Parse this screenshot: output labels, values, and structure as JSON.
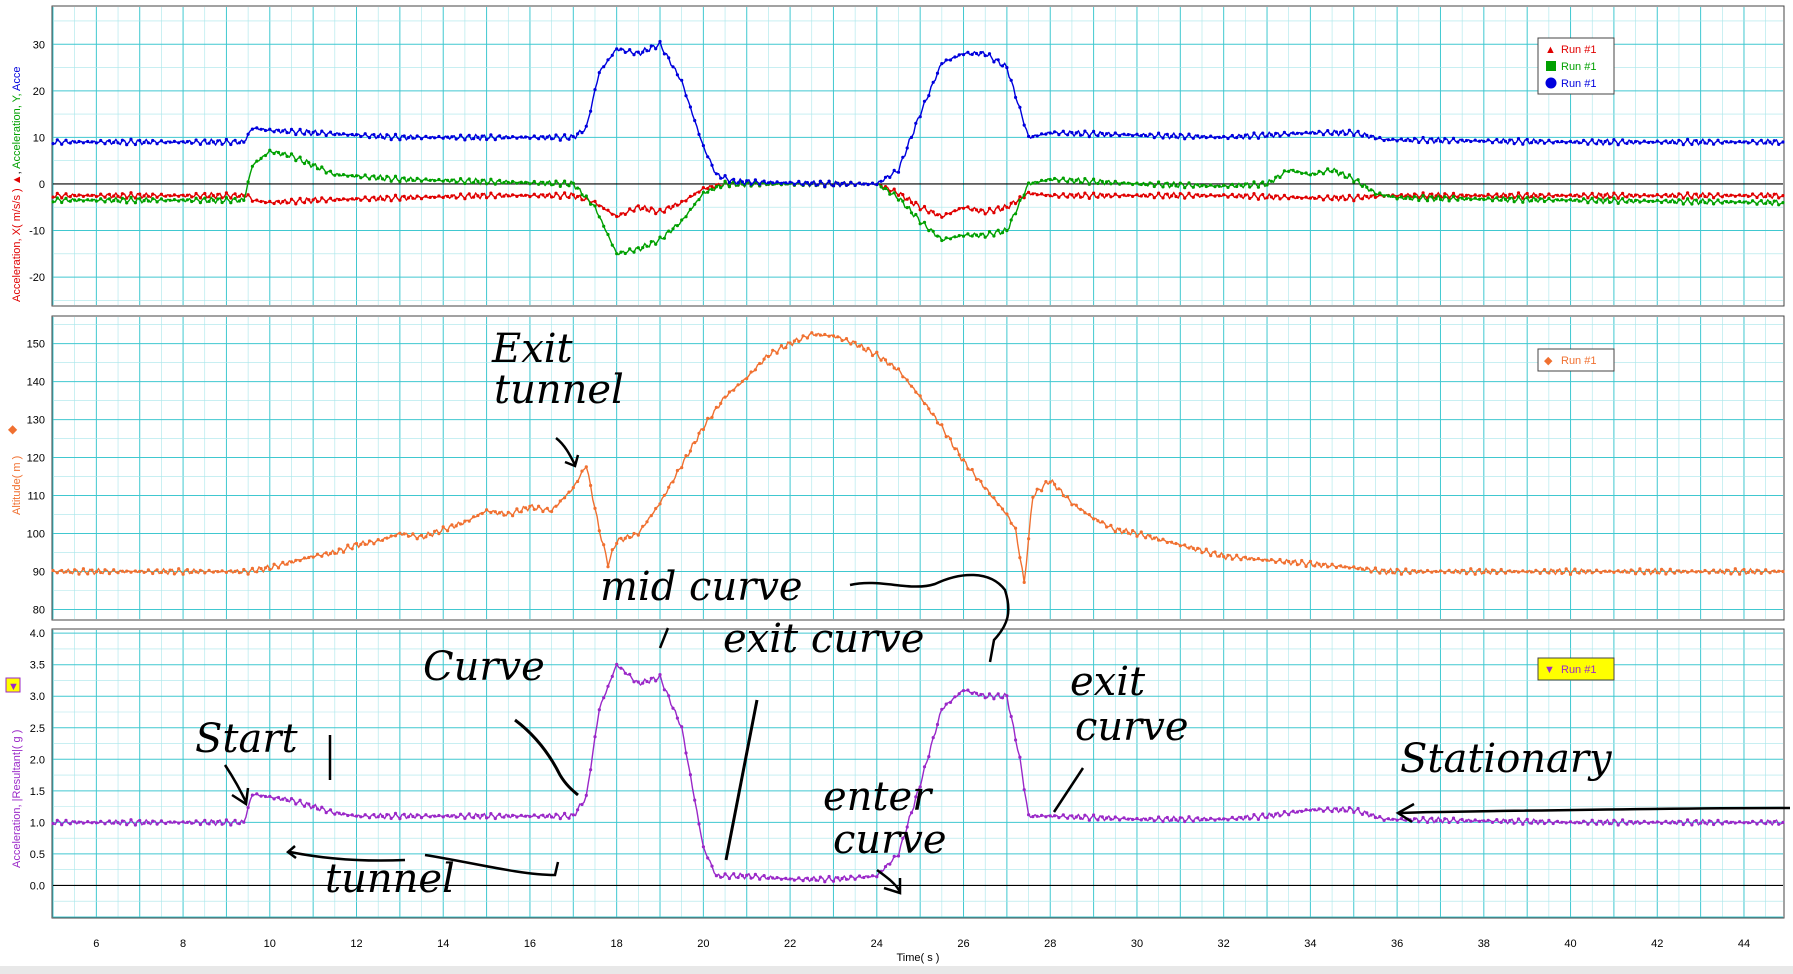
{
  "chart_data": [
    {
      "type": "line",
      "title": "",
      "xlabel": "",
      "ylabel": "Acceleration, X( m/s/s )  Acceleration, Y, Acce",
      "xlim": [
        5,
        44.9
      ],
      "ylim": [
        -26,
        38
      ],
      "yticks": [
        30,
        20,
        10,
        0,
        -10,
        -20
      ],
      "grid": true,
      "legend": {
        "position": "top-right",
        "entries": [
          "Run #1",
          "Run #1",
          "Run #1"
        ]
      },
      "series": [
        {
          "name": "Run #1",
          "color": "#e00000",
          "marker": "triangle",
          "points": [
            [
              5,
              -2.5
            ],
            [
              9.5,
              -2.5
            ],
            [
              9.6,
              -3.5
            ],
            [
              10,
              -4
            ],
            [
              11,
              -3.5
            ],
            [
              13,
              -3
            ],
            [
              15,
              -2.5
            ],
            [
              17,
              -2.5
            ],
            [
              17.5,
              -4
            ],
            [
              18,
              -7
            ],
            [
              18.5,
              -5
            ],
            [
              19,
              -6
            ],
            [
              19.5,
              -4
            ],
            [
              20,
              -1
            ],
            [
              20.5,
              0
            ],
            [
              23,
              0
            ],
            [
              24,
              0
            ],
            [
              24.5,
              -2
            ],
            [
              25,
              -5
            ],
            [
              25.5,
              -7
            ],
            [
              26,
              -5
            ],
            [
              26.5,
              -6
            ],
            [
              27,
              -5
            ],
            [
              27.5,
              -2
            ],
            [
              28,
              -2.5
            ],
            [
              30,
              -2.5
            ],
            [
              32,
              -2.5
            ],
            [
              34,
              -3
            ],
            [
              35,
              -3
            ],
            [
              35.7,
              -2.5
            ],
            [
              40,
              -2.5
            ],
            [
              44.9,
              -2.5
            ]
          ]
        },
        {
          "name": "Run #1",
          "color": "#00a000",
          "marker": "square",
          "points": [
            [
              5,
              -3.5
            ],
            [
              9.4,
              -3.5
            ],
            [
              9.6,
              4
            ],
            [
              10,
              7
            ],
            [
              10.5,
              6
            ],
            [
              11,
              4
            ],
            [
              11.5,
              2
            ],
            [
              13,
              1
            ],
            [
              15,
              0.5
            ],
            [
              17,
              0
            ],
            [
              17.5,
              -5
            ],
            [
              18,
              -15
            ],
            [
              18.5,
              -14
            ],
            [
              19,
              -12
            ],
            [
              19.5,
              -8
            ],
            [
              20,
              -2
            ],
            [
              20.5,
              0
            ],
            [
              24,
              0
            ],
            [
              24.5,
              -3
            ],
            [
              25,
              -8
            ],
            [
              25.5,
              -12
            ],
            [
              26,
              -11
            ],
            [
              26.5,
              -11
            ],
            [
              27,
              -10
            ],
            [
              27.5,
              0
            ],
            [
              28,
              1
            ],
            [
              30,
              0
            ],
            [
              32,
              -0.5
            ],
            [
              33,
              0
            ],
            [
              33.5,
              3
            ],
            [
              34,
              2
            ],
            [
              34.5,
              3
            ],
            [
              35,
              1
            ],
            [
              35.5,
              -2
            ],
            [
              36,
              -3
            ],
            [
              40,
              -3.5
            ],
            [
              44.9,
              -4
            ]
          ]
        },
        {
          "name": "Run #1",
          "color": "#0000dd",
          "marker": "circle",
          "points": [
            [
              5,
              9
            ],
            [
              9.4,
              9
            ],
            [
              9.6,
              12
            ],
            [
              10,
              11.5
            ],
            [
              11,
              11
            ],
            [
              13,
              10
            ],
            [
              15,
              10
            ],
            [
              17,
              10
            ],
            [
              17.3,
              12
            ],
            [
              17.6,
              24
            ],
            [
              18,
              29
            ],
            [
              18.5,
              28
            ],
            [
              19,
              30
            ],
            [
              19.5,
              22
            ],
            [
              20,
              8
            ],
            [
              20.3,
              2
            ],
            [
              20.7,
              0.5
            ],
            [
              23,
              0
            ],
            [
              24,
              0
            ],
            [
              24.5,
              3
            ],
            [
              25,
              15
            ],
            [
              25.5,
              26
            ],
            [
              26,
              28
            ],
            [
              26.5,
              28
            ],
            [
              27,
              25
            ],
            [
              27.5,
              10
            ],
            [
              28,
              11
            ],
            [
              30,
              10.5
            ],
            [
              32,
              10
            ],
            [
              34,
              11
            ],
            [
              35,
              11
            ],
            [
              35.7,
              9.5
            ],
            [
              40,
              9
            ],
            [
              44.9,
              9
            ]
          ]
        }
      ]
    },
    {
      "type": "line",
      "title": "",
      "xlabel": "",
      "ylabel": "Altitude( m )",
      "xlim": [
        5,
        44.9
      ],
      "ylim": [
        77.5,
        157
      ],
      "yticks": [
        150,
        140,
        130,
        120,
        110,
        100,
        90,
        80
      ],
      "grid": true,
      "legend": {
        "position": "top-right",
        "entries": [
          "Run #1"
        ]
      },
      "series": [
        {
          "name": "Run #1",
          "color": "#f07030",
          "marker": "diamond",
          "points": [
            [
              5,
              90
            ],
            [
              9.5,
              90
            ],
            [
              10,
              91
            ],
            [
              11,
              94
            ],
            [
              11.5,
              95
            ],
            [
              12,
              97
            ],
            [
              12.5,
              98
            ],
            [
              13,
              100
            ],
            [
              13.5,
              99
            ],
            [
              14,
              101
            ],
            [
              14.5,
              103
            ],
            [
              15,
              106
            ],
            [
              15.5,
              105
            ],
            [
              16,
              107
            ],
            [
              16.5,
              106
            ],
            [
              17,
              112
            ],
            [
              17.3,
              118
            ],
            [
              17.6,
              101
            ],
            [
              17.8,
              92
            ],
            [
              18,
              98
            ],
            [
              18.5,
              100
            ],
            [
              19,
              108
            ],
            [
              19.5,
              118
            ],
            [
              20,
              128
            ],
            [
              20.5,
              136
            ],
            [
              21,
              141
            ],
            [
              21.5,
              147
            ],
            [
              22,
              150
            ],
            [
              22.5,
              152.5
            ],
            [
              23,
              152
            ],
            [
              23.5,
              150
            ],
            [
              24,
              147
            ],
            [
              24.5,
              143
            ],
            [
              25,
              136
            ],
            [
              25.5,
              128
            ],
            [
              26,
              119
            ],
            [
              26.5,
              112
            ],
            [
              27,
              105
            ],
            [
              27.2,
              101
            ],
            [
              27.4,
              87
            ],
            [
              27.6,
              110
            ],
            [
              28,
              114
            ],
            [
              28.5,
              108
            ],
            [
              29,
              104
            ],
            [
              29.5,
              101
            ],
            [
              30,
              100
            ],
            [
              31,
              97
            ],
            [
              32,
              94
            ],
            [
              33,
              93
            ],
            [
              34,
              92
            ],
            [
              35,
              91
            ],
            [
              35.7,
              90
            ],
            [
              40,
              90
            ],
            [
              44.9,
              90
            ]
          ]
        }
      ]
    },
    {
      "type": "line",
      "title": "",
      "xlabel": "Time( s )",
      "ylabel": "Acceleration, |Resultant|( g )",
      "xlim": [
        5,
        44.9
      ],
      "xticks": [
        6,
        8,
        10,
        12,
        14,
        16,
        18,
        20,
        22,
        24,
        26,
        28,
        30,
        32,
        34,
        36,
        38,
        40,
        42,
        44
      ],
      "ylim": [
        -0.5,
        4.05
      ],
      "yticks": [
        4.0,
        3.5,
        3.0,
        2.5,
        2.0,
        1.5,
        1.0,
        0.5,
        0.0
      ],
      "grid": true,
      "legend": {
        "position": "top-right",
        "entries": [
          "Run #1"
        ]
      },
      "series": [
        {
          "name": "Run #1",
          "color": "#9a28c8",
          "marker": "triangle-down",
          "points": [
            [
              5,
              1
            ],
            [
              9.4,
              1
            ],
            [
              9.6,
              1.45
            ],
            [
              10,
              1.4
            ],
            [
              10.5,
              1.35
            ],
            [
              11,
              1.25
            ],
            [
              11.5,
              1.15
            ],
            [
              12,
              1.1
            ],
            [
              13,
              1.1
            ],
            [
              14,
              1.1
            ],
            [
              15,
              1.1
            ],
            [
              16,
              1.1
            ],
            [
              17,
              1.1
            ],
            [
              17.3,
              1.4
            ],
            [
              17.6,
              2.8
            ],
            [
              18,
              3.5
            ],
            [
              18.5,
              3.2
            ],
            [
              19,
              3.3
            ],
            [
              19.5,
              2.5
            ],
            [
              20,
              0.6
            ],
            [
              20.3,
              0.15
            ],
            [
              21,
              0.15
            ],
            [
              22,
              0.1
            ],
            [
              23,
              0.1
            ],
            [
              24,
              0.15
            ],
            [
              24.5,
              0.5
            ],
            [
              25,
              1.6
            ],
            [
              25.5,
              2.8
            ],
            [
              26,
              3.1
            ],
            [
              26.5,
              3
            ],
            [
              27,
              3
            ],
            [
              27.3,
              2
            ],
            [
              27.5,
              1.1
            ],
            [
              28,
              1.1
            ],
            [
              30,
              1.05
            ],
            [
              32,
              1.05
            ],
            [
              33,
              1.1
            ],
            [
              33.5,
              1.15
            ],
            [
              34,
              1.2
            ],
            [
              35,
              1.2
            ],
            [
              35.7,
              1.05
            ],
            [
              40,
              1
            ],
            [
              44.9,
              1
            ]
          ]
        }
      ]
    }
  ],
  "x_ticks": [
    "6",
    "8",
    "10",
    "12",
    "14",
    "16",
    "18",
    "20",
    "22",
    "24",
    "26",
    "28",
    "30",
    "32",
    "34",
    "36",
    "38",
    "40",
    "42",
    "44"
  ],
  "x_title": "Time( s )",
  "panel1": {
    "ticks": [
      "30",
      "20",
      "10",
      "0",
      "-10",
      "-20"
    ],
    "y_title_x": "Acceleration, X( m/s/s )",
    "y_title_y": "Acceleration, Y,",
    "y_title_z": "Acce",
    "legend": [
      "Run #1",
      "Run #1",
      "Run #1"
    ]
  },
  "panel2": {
    "ticks": [
      "150",
      "140",
      "130",
      "120",
      "110",
      "100",
      "90",
      "80"
    ],
    "y_title": "Altitude( m )",
    "legend": [
      "Run #1"
    ]
  },
  "panel3": {
    "ticks": [
      "4.0",
      "3.5",
      "3.0",
      "2.5",
      "2.0",
      "1.5",
      "1.0",
      "0.5",
      "0.0"
    ],
    "y_title": "Acceleration, |Resultant|( g )",
    "legend": [
      "Run #1"
    ]
  },
  "annotations": {
    "exit_tunnel_1": "Exit",
    "exit_tunnel_2": "tunnel",
    "mid_curve": "mid curve",
    "exit_curve_mid": "exit curve",
    "curve": "Curve",
    "start": "Start",
    "tunnel": "tunnel",
    "enter_curve_1": "enter",
    "enter_curve_2": "curve",
    "exit_curve_right_1": "exit",
    "exit_curve_right_2": "curve",
    "stationary": "Stationary"
  },
  "colors": {
    "grid_major": "#40c8d0",
    "grid_minor": "#a8e6ea",
    "red": "#e00000",
    "green": "#00a000",
    "blue": "#0000dd",
    "orange": "#f07030",
    "purple": "#9a28c8",
    "legend_yellow": "#ffff00"
  }
}
